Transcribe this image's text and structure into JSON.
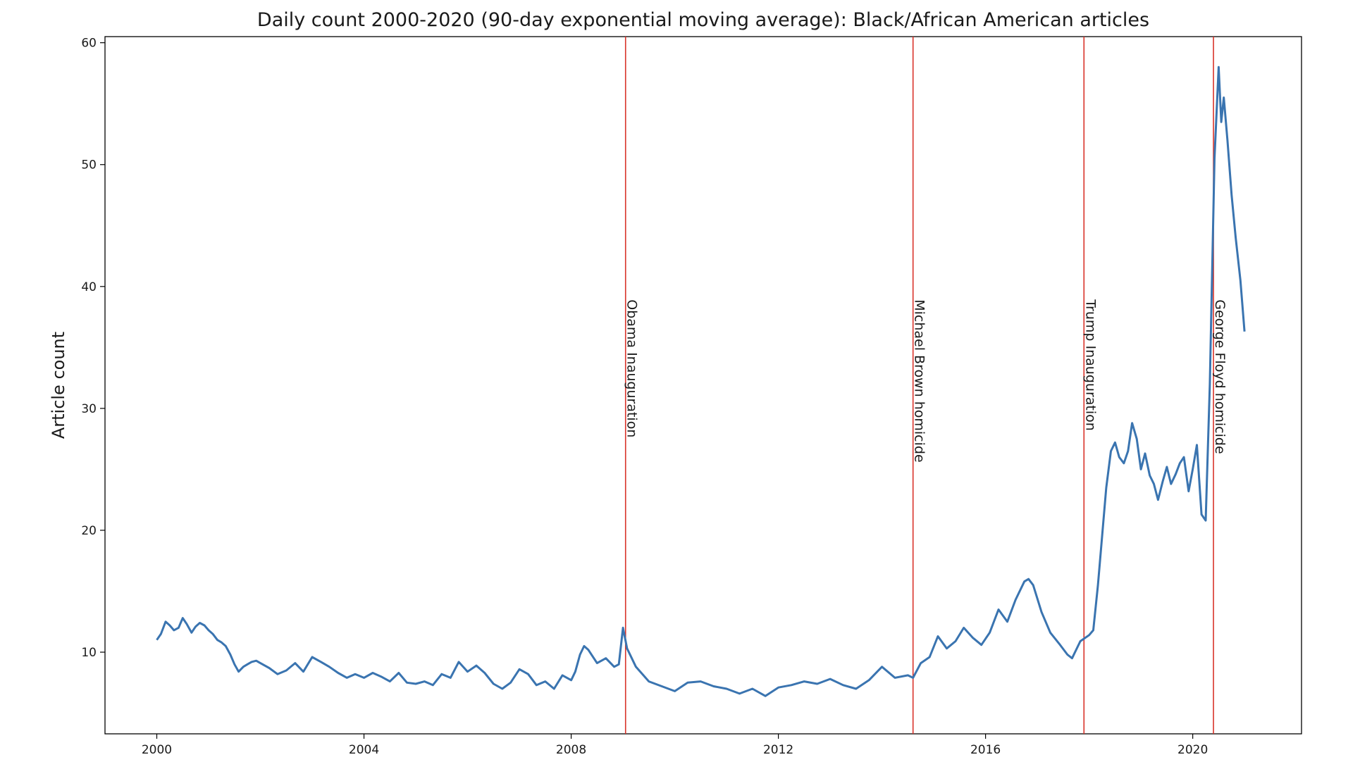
{
  "chart_data": {
    "type": "line",
    "title": "Daily count 2000-2020 (90-day exponential moving average): Black/African American articles",
    "xlabel": "",
    "ylabel": "Article count",
    "xlim": [
      1999.0,
      2022.1
    ],
    "ylim": [
      3.3,
      60.5
    ],
    "x_ticks": [
      2000,
      2004,
      2008,
      2012,
      2016,
      2020
    ],
    "y_ticks": [
      10,
      20,
      30,
      40,
      50,
      60
    ],
    "grid": false,
    "line_color": "#3a74b0",
    "event_color": "#d9332a",
    "events": [
      {
        "x": 2009.05,
        "label": "Obama Inauguration"
      },
      {
        "x": 2014.6,
        "label": "Michael Brown homicide"
      },
      {
        "x": 2017.9,
        "label": "Trump Inauguration"
      },
      {
        "x": 2020.4,
        "label": "George Floyd homicide"
      }
    ],
    "series": [
      {
        "x": [
          2000.0,
          2000.08,
          2000.17,
          2000.25,
          2000.33,
          2000.42,
          2000.5,
          2000.58,
          2000.67,
          2000.75,
          2000.83,
          2000.92,
          2001.0,
          2001.08,
          2001.17,
          2001.25,
          2001.33,
          2001.42,
          2001.5,
          2001.58,
          2001.67,
          2001.75,
          2001.83,
          2001.92,
          2002.0,
          2002.17,
          2002.33,
          2002.5,
          2002.67,
          2002.83,
          2003.0,
          2003.17,
          2003.33,
          2003.5,
          2003.67,
          2003.83,
          2004.0,
          2004.17,
          2004.33,
          2004.5,
          2004.67,
          2004.83,
          2005.0,
          2005.17,
          2005.33,
          2005.5,
          2005.67,
          2005.83,
          2006.0,
          2006.17,
          2006.33,
          2006.5,
          2006.67,
          2006.83,
          2007.0,
          2007.17,
          2007.33,
          2007.5,
          2007.67,
          2007.83,
          2008.0,
          2008.08,
          2008.17,
          2008.25,
          2008.33,
          2008.5,
          2008.67,
          2008.83,
          2008.92,
          2009.0,
          2009.08,
          2009.25,
          2009.5,
          2009.75,
          2010.0,
          2010.25,
          2010.5,
          2010.75,
          2011.0,
          2011.25,
          2011.5,
          2011.75,
          2012.0,
          2012.25,
          2012.5,
          2012.75,
          2013.0,
          2013.25,
          2013.5,
          2013.75,
          2014.0,
          2014.25,
          2014.5,
          2014.6,
          2014.75,
          2014.92,
          2015.08,
          2015.25,
          2015.42,
          2015.58,
          2015.75,
          2015.92,
          2016.08,
          2016.25,
          2016.42,
          2016.58,
          2016.75,
          2016.83,
          2016.92,
          2017.08,
          2017.25,
          2017.42,
          2017.58,
          2017.67,
          2017.83,
          2018.0,
          2018.08,
          2018.17,
          2018.25,
          2018.33,
          2018.42,
          2018.5,
          2018.58,
          2018.67,
          2018.75,
          2018.83,
          2018.92,
          2019.0,
          2019.08,
          2019.17,
          2019.25,
          2019.33,
          2019.42,
          2019.5,
          2019.58,
          2019.67,
          2019.75,
          2019.83,
          2019.92,
          2020.0,
          2020.08,
          2020.17,
          2020.25,
          2020.33,
          2020.42,
          2020.5,
          2020.55,
          2020.6,
          2020.67,
          2020.75,
          2020.83,
          2020.92,
          2021.0
        ],
        "y": [
          11.0,
          11.5,
          12.5,
          12.2,
          11.8,
          12.0,
          12.8,
          12.3,
          11.6,
          12.1,
          12.4,
          12.2,
          11.8,
          11.5,
          11.0,
          10.8,
          10.5,
          9.8,
          9.0,
          8.4,
          8.8,
          9.0,
          9.2,
          9.3,
          9.1,
          8.7,
          8.2,
          8.5,
          9.1,
          8.4,
          9.6,
          9.2,
          8.8,
          8.3,
          7.9,
          8.2,
          7.9,
          8.3,
          8.0,
          7.6,
          8.3,
          7.5,
          7.4,
          7.6,
          7.3,
          8.2,
          7.9,
          9.2,
          8.4,
          8.9,
          8.3,
          7.4,
          7.0,
          7.5,
          8.6,
          8.2,
          7.3,
          7.6,
          7.0,
          8.1,
          7.7,
          8.4,
          9.8,
          10.5,
          10.2,
          9.1,
          9.5,
          8.8,
          9.0,
          12.0,
          10.3,
          8.8,
          7.6,
          7.2,
          6.8,
          7.5,
          7.6,
          7.2,
          7.0,
          6.6,
          7.0,
          6.4,
          7.1,
          7.3,
          7.6,
          7.4,
          7.8,
          7.3,
          7.0,
          7.7,
          8.8,
          7.9,
          8.1,
          7.9,
          9.1,
          9.6,
          11.3,
          10.3,
          10.9,
          12.0,
          11.2,
          10.6,
          11.6,
          13.5,
          12.5,
          14.3,
          15.8,
          16.0,
          15.5,
          13.3,
          11.6,
          10.7,
          9.8,
          9.5,
          10.9,
          11.4,
          11.8,
          15.5,
          19.5,
          23.5,
          26.5,
          27.2,
          26.0,
          25.5,
          26.5,
          28.8,
          27.5,
          25.0,
          26.3,
          24.5,
          23.8,
          22.5,
          24.0,
          25.2,
          23.8,
          24.6,
          25.5,
          26.0,
          23.2,
          25.0,
          27.0,
          21.3,
          20.8,
          32.0,
          50.5,
          58.0,
          53.5,
          55.5,
          52.0,
          47.5,
          44.0,
          40.5,
          36.3
        ]
      }
    ]
  }
}
